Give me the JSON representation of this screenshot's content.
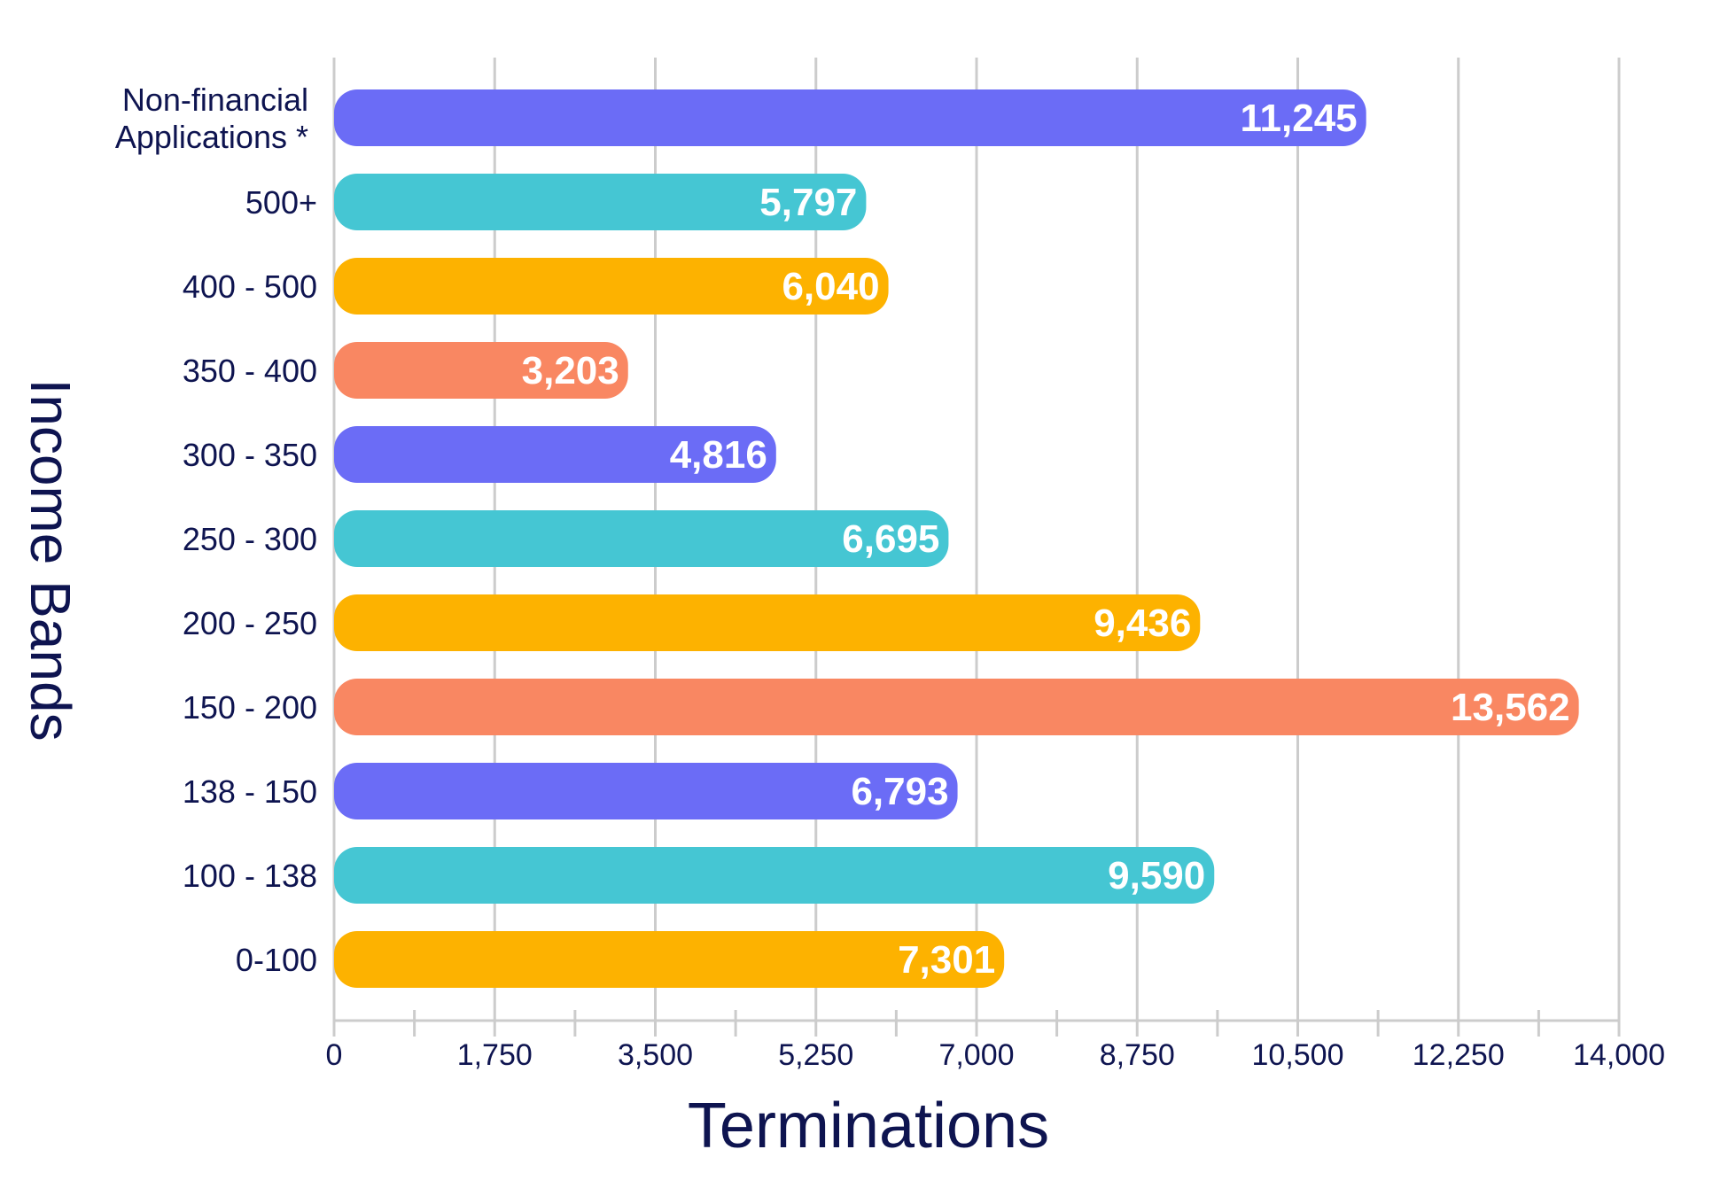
{
  "chart_data": {
    "type": "bar",
    "orientation": "horizontal",
    "xlabel": "Terminations",
    "ylabel": "Income Bands",
    "xlim": [
      0,
      14000
    ],
    "xticks": [
      0,
      1750,
      3500,
      5250,
      7000,
      8750,
      10500,
      12250,
      14000
    ],
    "xtick_labels": [
      "0",
      "1,750",
      "3,500",
      "5,250",
      "7,000",
      "8,750",
      "10,500",
      "12,250",
      "14,000"
    ],
    "grid": true,
    "categories": [
      [
        "Non-financial",
        "Applications *"
      ],
      [
        "500+"
      ],
      [
        "400 - 500"
      ],
      [
        "350 - 400"
      ],
      [
        "300 - 350"
      ],
      [
        "250 - 300"
      ],
      [
        "200 - 250"
      ],
      [
        "150 - 200"
      ],
      [
        "138 - 150"
      ],
      [
        "100 - 138"
      ],
      [
        "0-100"
      ]
    ],
    "values": [
      11245,
      5797,
      6040,
      3203,
      4816,
      6695,
      9436,
      13562,
      6793,
      9590,
      7301
    ],
    "value_labels": [
      "11,245",
      "5,797",
      "6,040",
      "3,203",
      "4,816",
      "6,695",
      "9,436",
      "13,562",
      "6,793",
      "9,590",
      "7,301"
    ],
    "colors": [
      "#6b6cf6",
      "#45c6d3",
      "#fdb200",
      "#f98762",
      "#6b6cf6",
      "#45c6d3",
      "#fdb200",
      "#f98762",
      "#6b6cf6",
      "#45c6d3",
      "#fdb200"
    ]
  }
}
